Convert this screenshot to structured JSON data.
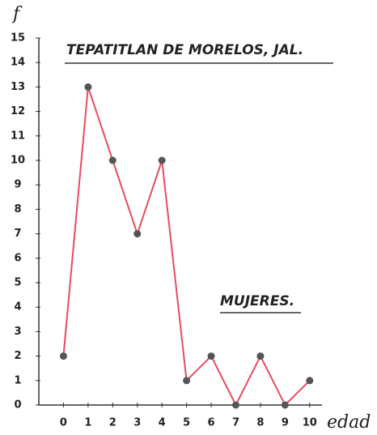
{
  "chart_data": {
    "type": "line",
    "title": "TEPATITLAN DE MORELOS, JAL.",
    "annotation": "MUJERES.",
    "x_label": "edad",
    "y_label": "f",
    "x": [
      0,
      1,
      2,
      3,
      4,
      5,
      6,
      7,
      8,
      9,
      10
    ],
    "series": [
      {
        "color": "#e84c5c",
        "values": [
          2,
          13,
          10,
          7,
          10,
          1,
          2,
          0,
          2,
          0,
          1
        ]
      }
    ],
    "xlim": [
      -1,
      10.5
    ],
    "xticks": [
      0,
      1,
      2,
      3,
      4,
      5,
      6,
      7,
      8,
      9,
      10
    ],
    "ylim": [
      0,
      15
    ],
    "yticks": [
      0,
      1,
      2,
      3,
      4,
      5,
      6,
      7,
      8,
      9,
      10,
      11,
      12,
      13,
      14,
      15
    ]
  }
}
